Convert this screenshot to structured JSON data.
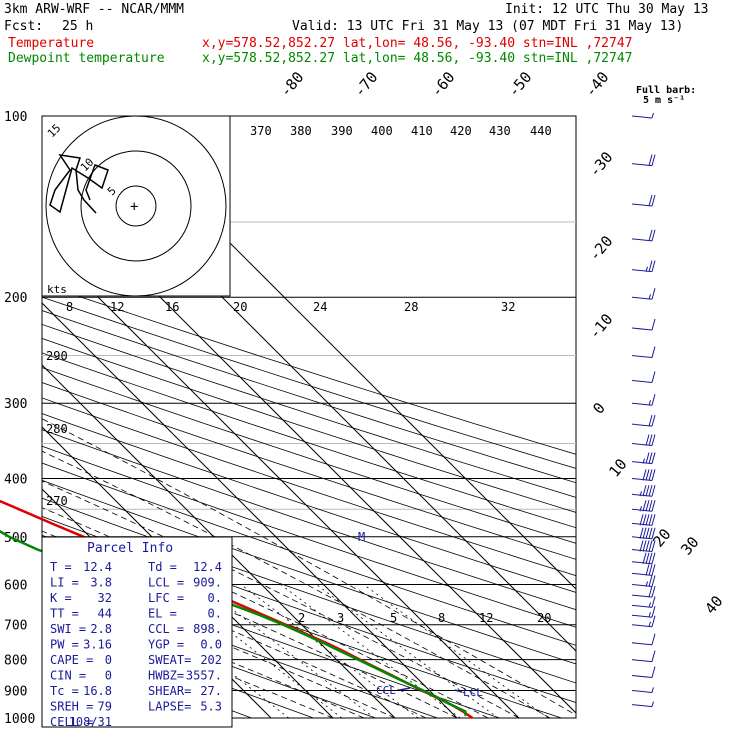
{
  "chart_data": {
    "type": "line",
    "header": {
      "model": "3km ARW-WRF -- NCAR/MMM",
      "init": "Init: 12 UTC Thu 30 May 13",
      "fcst_label": "Fcst:",
      "fcst_value": "25 h",
      "valid": "Valid: 13 UTC Fri 31 May 13 (07 MDT Fri 31 May 13)"
    },
    "legend": [
      {
        "name": "Temperature",
        "location": "x,y=578.52,852.27   lat,lon= 48.56, -93.40   stn=INL ,72747",
        "color": "#e00000"
      },
      {
        "name": "Dewpoint temperature",
        "location": "x,y=578.52,852.27   lat,lon= 48.56, -93.40   stn=INL ,72747",
        "color": "#008800"
      }
    ],
    "barb_legend": {
      "title": "Full barb:",
      "unit": "5 m s⁻¹"
    },
    "pressure_labels": [
      "100",
      "200",
      "300",
      "400",
      "500",
      "600",
      "700",
      "800",
      "900",
      "1000"
    ],
    "pressure_ticks": [
      100,
      200,
      300,
      400,
      500,
      600,
      700,
      800,
      900,
      1000
    ],
    "isotherm_labels": [
      "-80",
      "-70",
      "-60",
      "-50",
      "-40",
      "-30",
      "-20",
      "-10",
      "0",
      "10",
      "20",
      "30",
      "40"
    ],
    "isotherm_values": [
      -80,
      -70,
      -60,
      -50,
      -40,
      -30,
      -20,
      -10,
      0,
      10,
      20,
      30,
      40
    ],
    "theta_e_labels": [
      "370",
      "380",
      "390",
      "400",
      "410",
      "420",
      "430",
      "440"
    ],
    "dry_adiabat_labels": [
      "290",
      "280",
      "270"
    ],
    "mixing_ratio_labels": [
      "2",
      "3",
      "5",
      "8",
      "12",
      "20"
    ],
    "hodograph": {
      "rings": [
        "5",
        "10",
        "15"
      ],
      "units": "kts",
      "speed_labels": [
        "8",
        "12",
        "16",
        "20",
        "24",
        "28",
        "32"
      ]
    },
    "series": [
      {
        "name": "Temperature",
        "color": "#e00000",
        "p": [
          1000,
          975,
          950,
          925,
          900,
          875,
          850,
          825,
          800,
          775,
          750,
          725,
          700,
          675,
          650,
          625,
          600,
          575,
          550,
          525,
          500,
          475,
          450,
          425,
          400,
          375,
          350,
          325,
          300,
          275,
          250,
          225,
          200,
          175,
          150,
          125,
          100
        ],
        "t": [
          12.5,
          12.0,
          11.2,
          10.0,
          8.8,
          7.6,
          6.4,
          5.1,
          3.8,
          2.5,
          1.0,
          -0.8,
          -2.6,
          -4.6,
          -6.6,
          -8.8,
          -11.0,
          -13.5,
          -15.8,
          -18.5,
          -21.0,
          -24.0,
          -27.0,
          -30.2,
          -33.5,
          -37.5,
          -41.5,
          -45.8,
          -50.0,
          -54.2,
          -58.0,
          -60.5,
          -62.5,
          -63.5,
          -64.5,
          -65.5,
          -66.5
        ]
      },
      {
        "name": "Dewpoint temperature",
        "color": "#008800",
        "p": [
          990,
          975,
          950,
          925,
          900,
          875,
          850,
          825,
          800,
          775,
          750,
          725,
          700,
          675,
          650,
          625,
          600,
          575,
          550,
          525,
          500,
          475,
          450,
          425,
          400,
          375,
          350,
          325,
          300,
          275,
          250,
          230,
          210,
          200,
          175,
          150,
          125,
          100
        ],
        "t": [
          11.8,
          12.4,
          11.2,
          10.2,
          9.0,
          7.6,
          6.2,
          4.9,
          3.5,
          2.0,
          0.5,
          -1.2,
          -3.0,
          -5.2,
          -7.8,
          -11.0,
          -15.5,
          -21.0,
          -27.0,
          -30.5,
          -33.0,
          -34.5,
          -37.0,
          -40.5,
          -44.0,
          -50.0,
          -55.0,
          -59.0,
          -63.0,
          -65.0,
          -67.0,
          -71.0,
          -67.0,
          -64.0,
          -67.5,
          -70.5,
          -73.5,
          -76.5
        ]
      }
    ],
    "wind_barbs_ms": [
      {
        "p": 100,
        "spd": 3
      },
      {
        "p": 120,
        "spd": 10
      },
      {
        "p": 140,
        "spd": 10
      },
      {
        "p": 160,
        "spd": 11
      },
      {
        "p": 180,
        "spd": 12
      },
      {
        "p": 200,
        "spd": 8
      },
      {
        "p": 225,
        "spd": 6
      },
      {
        "p": 250,
        "spd": 6
      },
      {
        "p": 275,
        "spd": 6
      },
      {
        "p": 300,
        "spd": 8
      },
      {
        "p": 325,
        "spd": 10
      },
      {
        "p": 350,
        "spd": 15
      },
      {
        "p": 375,
        "spd": 17
      },
      {
        "p": 400,
        "spd": 21
      },
      {
        "p": 425,
        "spd": 22
      },
      {
        "p": 450,
        "spd": 23
      },
      {
        "p": 475,
        "spd": 25
      },
      {
        "p": 500,
        "spd": 25
      },
      {
        "p": 525,
        "spd": 25
      },
      {
        "p": 550,
        "spd": 20
      },
      {
        "p": 575,
        "spd": 15
      },
      {
        "p": 600,
        "spd": 12
      },
      {
        "p": 625,
        "spd": 10
      },
      {
        "p": 650,
        "spd": 9
      },
      {
        "p": 675,
        "spd": 8
      },
      {
        "p": 700,
        "spd": 7
      },
      {
        "p": 750,
        "spd": 6
      },
      {
        "p": 800,
        "spd": 5
      },
      {
        "p": 850,
        "spd": 5
      },
      {
        "p": 900,
        "spd": 4
      },
      {
        "p": 950,
        "spd": 3
      }
    ],
    "annotations": [
      "M",
      "CCL",
      "LCL"
    ],
    "parcel_info": {
      "title": "Parcel Info",
      "rows": [
        [
          "T  =",
          "12.4",
          "Td =",
          "12.4"
        ],
        [
          "LI =",
          "3.8",
          "LCL =",
          "909."
        ],
        [
          "K  =",
          "32",
          "LFC =",
          "0."
        ],
        [
          "TT =",
          "44",
          "EL  =",
          "0."
        ],
        [
          "SWI =",
          "2.8",
          "CCL =",
          "898."
        ],
        [
          "PW =",
          "3.16",
          "YGP =",
          "0.0"
        ],
        [
          "CAPE =",
          "0",
          "SWEAT=",
          "202"
        ],
        [
          "CIN =",
          "0",
          "HWBZ=",
          "3557."
        ],
        [
          "Tc =",
          "16.8",
          "SHEAR=",
          "27."
        ],
        [
          "SREH =",
          "79",
          "LAPSE=",
          "5.3"
        ],
        [
          "CELL =",
          "108/31",
          "",
          ""
        ]
      ]
    }
  }
}
